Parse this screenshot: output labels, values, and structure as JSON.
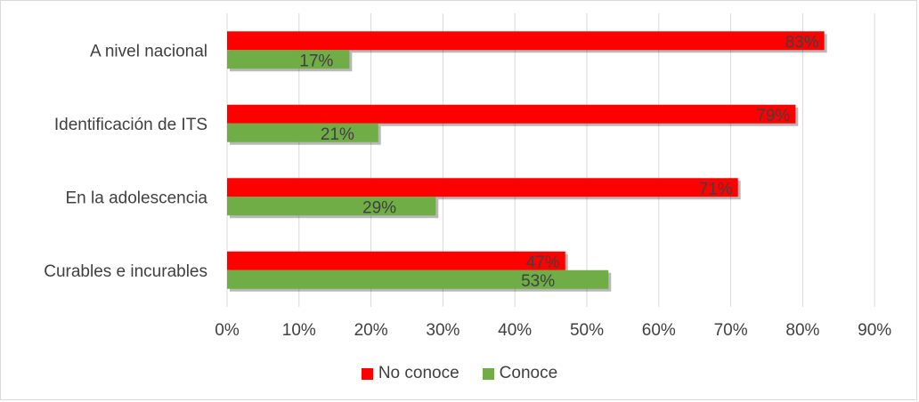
{
  "chart_data": {
    "type": "bar",
    "orientation": "horizontal",
    "categories": [
      "A nivel nacional",
      "Identificación de ITS",
      "En la adolescencia",
      "Curables e incurables"
    ],
    "series": [
      {
        "name": "No conoce",
        "color": "#ff0000",
        "values": [
          83,
          79,
          71,
          47
        ],
        "labels": [
          "83%",
          "79%",
          "71%",
          "47%"
        ]
      },
      {
        "name": "Conoce",
        "color": "#70ad47",
        "values": [
          17,
          21,
          29,
          53
        ],
        "labels": [
          "17%",
          "21%",
          "29%",
          "53%"
        ]
      }
    ],
    "x_ticks": [
      "0%",
      "10%",
      "20%",
      "30%",
      "40%",
      "50%",
      "60%",
      "70%",
      "80%",
      "90%"
    ],
    "xlim": [
      0,
      90
    ],
    "grid": true,
    "legend_position": "bottom"
  }
}
